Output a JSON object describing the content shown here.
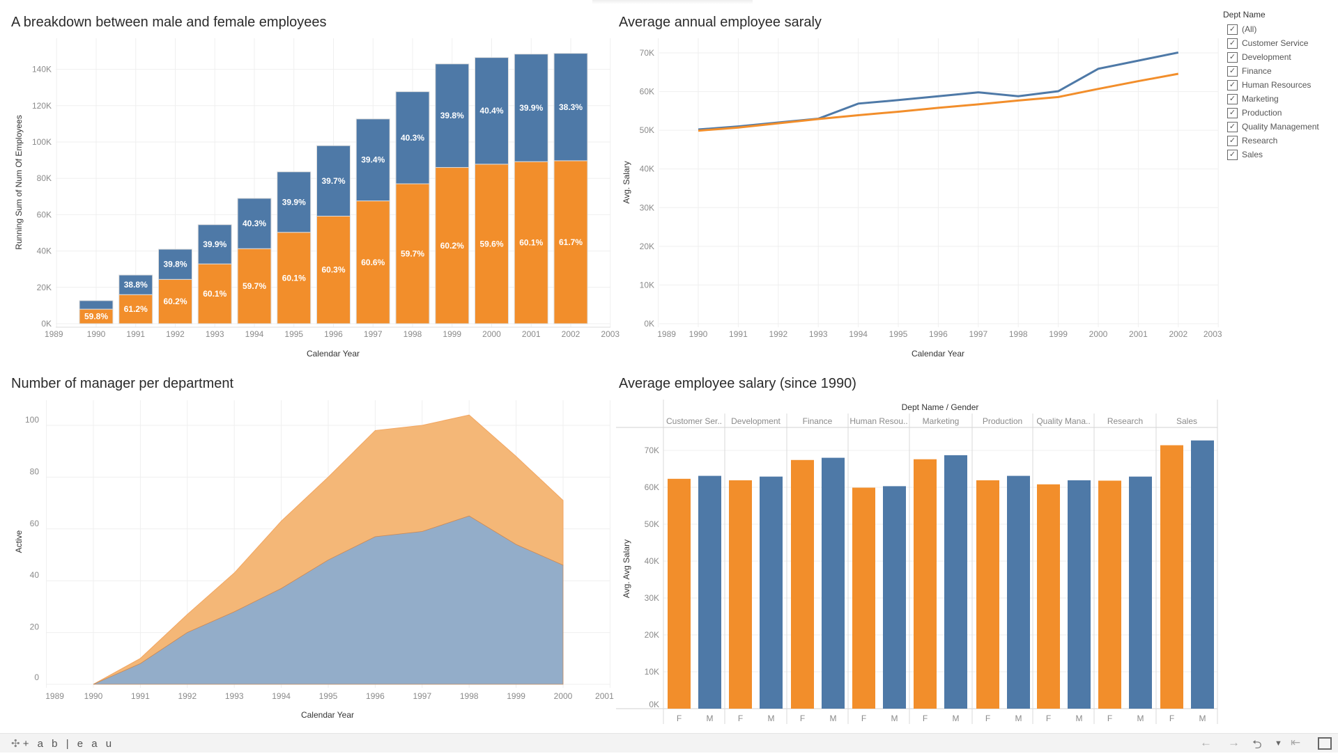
{
  "colors": {
    "female": "#f28e2b",
    "male": "#4e79a7",
    "female_area": "#f4b777",
    "male_area": "#93adc9"
  },
  "filter": {
    "title": "Dept Name",
    "items": [
      {
        "label": "(All)",
        "checked": true
      },
      {
        "label": "Customer Service",
        "checked": true
      },
      {
        "label": "Development",
        "checked": true
      },
      {
        "label": "Finance",
        "checked": true
      },
      {
        "label": "Human Resources",
        "checked": true
      },
      {
        "label": "Marketing",
        "checked": true
      },
      {
        "label": "Production",
        "checked": true
      },
      {
        "label": "Quality Management",
        "checked": true
      },
      {
        "label": "Research",
        "checked": true
      },
      {
        "label": "Sales",
        "checked": true
      }
    ]
  },
  "footer": {
    "logo": "+ a b | e a u",
    "icons": [
      "back-arrow-icon",
      "forward-arrow-icon",
      "share-icon",
      "dropdown-icon",
      "revert-icon",
      "fullscreen-icon"
    ]
  },
  "chart_data": [
    {
      "type": "bar",
      "stacked": true,
      "title": "A breakdown  between male and female employees",
      "xlabel": "Calendar Year",
      "ylabel": "Running Sum of Num Of Employees",
      "xticks": [
        "1989",
        "1990",
        "1991",
        "1992",
        "1993",
        "1994",
        "1995",
        "1996",
        "1997",
        "1998",
        "1999",
        "2000",
        "2001",
        "2002",
        "2003"
      ],
      "yticks": [
        {
          "v": 0,
          "l": "0K"
        },
        {
          "v": 20,
          "l": "20K"
        },
        {
          "v": 40,
          "l": "40K"
        },
        {
          "v": 60,
          "l": "60K"
        },
        {
          "v": 80,
          "l": "80K"
        },
        {
          "v": 100,
          "l": "100K"
        },
        {
          "v": 120,
          "l": "120K"
        },
        {
          "v": 140,
          "l": "140K"
        }
      ],
      "ylim": [
        0,
        150
      ],
      "unit": "thousands",
      "categories": [
        1990,
        1991,
        1992,
        1993,
        1994,
        1995,
        1996,
        1997,
        1998,
        1999,
        2000,
        2001,
        2002
      ],
      "series": [
        {
          "key": "female",
          "values": [
            8.0,
            16.0,
            24.4,
            32.9,
            41.3,
            50.3,
            59.2,
            67.6,
            77.0,
            86.0,
            87.8,
            89.2,
            89.7
          ],
          "labels": [
            "59.8%",
            "61.2%",
            "60.2%",
            "60.1%",
            "59.7%",
            "60.1%",
            "60.3%",
            "60.6%",
            "59.7%",
            "60.2%",
            "59.6%",
            "60.1%",
            "61.7%"
          ]
        },
        {
          "key": "male",
          "values": [
            4.7,
            10.8,
            16.6,
            21.6,
            27.7,
            33.3,
            38.8,
            45.1,
            50.7,
            57.0,
            58.7,
            59.2,
            59.1
          ],
          "labels": [
            null,
            "38.8%",
            "39.8%",
            "39.9%",
            "40.3%",
            "39.9%",
            "39.7%",
            "39.4%",
            "40.3%",
            "39.8%",
            "40.4%",
            "39.9%",
            "38.3%"
          ]
        }
      ]
    },
    {
      "type": "line",
      "title": "Average annual employee saraly",
      "xlabel": "Calendar Year",
      "ylabel": "Avg. Salary",
      "xticks": [
        "1989",
        "1990",
        "1991",
        "1992",
        "1993",
        "1994",
        "1995",
        "1996",
        "1997",
        "1998",
        "1999",
        "2000",
        "2001",
        "2002",
        "2003"
      ],
      "yticks": [
        {
          "v": 0,
          "l": "0K"
        },
        {
          "v": 10,
          "l": "10K"
        },
        {
          "v": 20,
          "l": "20K"
        },
        {
          "v": 30,
          "l": "30K"
        },
        {
          "v": 40,
          "l": "40K"
        },
        {
          "v": 50,
          "l": "50K"
        },
        {
          "v": 60,
          "l": "60K"
        },
        {
          "v": 70,
          "l": "70K"
        }
      ],
      "ylim": [
        0,
        70
      ],
      "unit": "thousands",
      "x": [
        1990,
        1991,
        1992,
        1993,
        1994,
        1995,
        1996,
        1997,
        1998,
        1999,
        2000,
        2001,
        2002
      ],
      "series": [
        {
          "key": "male",
          "values": [
            50.2,
            51.0,
            52.0,
            53.0,
            56.9,
            57.8,
            58.8,
            59.8,
            58.8,
            60.1,
            65.9,
            68.0,
            70.1
          ]
        },
        {
          "key": "female",
          "values": [
            49.9,
            50.7,
            51.8,
            52.9,
            53.9,
            54.8,
            55.8,
            56.7,
            57.7,
            58.6,
            60.7,
            62.7,
            64.6
          ]
        }
      ]
    },
    {
      "type": "area",
      "stacked": true,
      "title": "Number of manager per department",
      "xlabel": "Calendar Year",
      "ylabel": "Active",
      "xticks": [
        "1989",
        "1990",
        "1991",
        "1992",
        "1993",
        "1994",
        "1995",
        "1996",
        "1997",
        "1998",
        "1999",
        "2000",
        "2001"
      ],
      "yticks": [
        {
          "v": 0,
          "l": "0"
        },
        {
          "v": 20,
          "l": "20"
        },
        {
          "v": 40,
          "l": "40"
        },
        {
          "v": 60,
          "l": "60"
        },
        {
          "v": 80,
          "l": "80"
        },
        {
          "v": 100,
          "l": "100"
        }
      ],
      "ylim": [
        0,
        108
      ],
      "x": [
        1990,
        1991,
        1992,
        1993,
        1994,
        1995,
        1996,
        1997,
        1998,
        1999,
        2000
      ],
      "series": [
        {
          "key": "male",
          "values": [
            0,
            8,
            20,
            28,
            37,
            48,
            57,
            59,
            65,
            54,
            46
          ]
        },
        {
          "key": "female",
          "values": [
            0,
            2,
            7,
            15,
            26,
            32,
            41,
            41,
            39,
            34,
            25
          ]
        }
      ]
    },
    {
      "type": "bar",
      "grouped": true,
      "title": "Average employee salary (since 1990)",
      "header": "Dept Name / Gender",
      "ylabel": "Avg. Avg Salary",
      "yticks": [
        {
          "v": 0,
          "l": "0K"
        },
        {
          "v": 10,
          "l": "10K"
        },
        {
          "v": 20,
          "l": "20K"
        },
        {
          "v": 30,
          "l": "30K"
        },
        {
          "v": 40,
          "l": "40K"
        },
        {
          "v": 50,
          "l": "50K"
        },
        {
          "v": 60,
          "l": "60K"
        },
        {
          "v": 70,
          "l": "70K"
        }
      ],
      "ylim": [
        0,
        74
      ],
      "unit": "thousands",
      "categories": [
        "Customer Ser..",
        "Development",
        "Finance",
        "Human Resou..",
        "Marketing",
        "Production",
        "Quality Mana..",
        "Research",
        "Sales"
      ],
      "genders": [
        "F",
        "M"
      ],
      "series": [
        {
          "key": "female",
          "name": "F",
          "values": [
            62.3,
            61.9,
            67.4,
            59.9,
            67.6,
            61.9,
            60.8,
            61.8,
            71.4
          ]
        },
        {
          "key": "male",
          "name": "M",
          "values": [
            63.1,
            62.9,
            68.0,
            60.3,
            68.7,
            63.1,
            61.9,
            62.9,
            72.7
          ]
        }
      ]
    }
  ]
}
